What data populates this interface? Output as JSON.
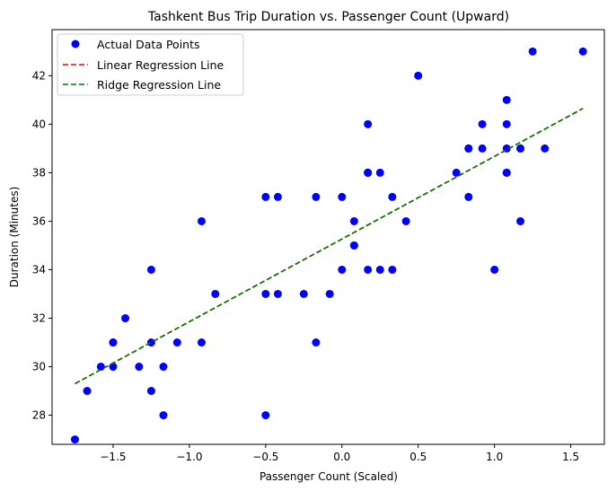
{
  "chart_data": {
    "type": "scatter",
    "title": "Tashkent Bus Trip Duration vs. Passenger Count (Upward)",
    "xlabel": "Passenger Count (Scaled)",
    "ylabel": "Duration (Minutes)",
    "xlim": [
      -1.9,
      1.72
    ],
    "ylim": [
      26.8,
      43.9
    ],
    "xticks": [
      -1.5,
      -1.0,
      -0.5,
      0.0,
      0.5,
      1.0,
      1.5
    ],
    "xtick_labels": [
      "−1.5",
      "−1.0",
      "−0.5",
      "0.0",
      "0.5",
      "1.0",
      "1.5"
    ],
    "yticks": [
      28,
      30,
      32,
      34,
      36,
      38,
      40,
      42
    ],
    "ytick_labels": [
      "28",
      "30",
      "32",
      "34",
      "36",
      "38",
      "40",
      "42"
    ],
    "grid": false,
    "legend_position": "top-left",
    "series": [
      {
        "name": "Actual Data Points",
        "kind": "scatter",
        "color": "#0000ff",
        "points": [
          [
            -1.75,
            27
          ],
          [
            -1.67,
            29
          ],
          [
            -1.58,
            30
          ],
          [
            -1.5,
            31
          ],
          [
            -1.5,
            31
          ],
          [
            -1.5,
            30
          ],
          [
            -1.42,
            32
          ],
          [
            -1.33,
            30
          ],
          [
            -1.25,
            34
          ],
          [
            -1.25,
            31
          ],
          [
            -1.25,
            29
          ],
          [
            -1.17,
            30
          ],
          [
            -1.17,
            28
          ],
          [
            -1.08,
            31
          ],
          [
            -0.92,
            36
          ],
          [
            -0.92,
            31
          ],
          [
            -0.83,
            33
          ],
          [
            -0.5,
            37
          ],
          [
            -0.5,
            33
          ],
          [
            -0.5,
            28
          ],
          [
            -0.42,
            37
          ],
          [
            -0.42,
            33
          ],
          [
            -0.25,
            33
          ],
          [
            -0.17,
            37
          ],
          [
            -0.17,
            31
          ],
          [
            -0.08,
            33
          ],
          [
            0.0,
            37
          ],
          [
            0.0,
            34
          ],
          [
            0.08,
            36
          ],
          [
            0.08,
            35
          ],
          [
            0.08,
            35
          ],
          [
            0.17,
            40
          ],
          [
            0.17,
            38
          ],
          [
            0.17,
            38
          ],
          [
            0.17,
            38
          ],
          [
            0.17,
            34
          ],
          [
            0.25,
            38
          ],
          [
            0.25,
            34
          ],
          [
            0.33,
            37
          ],
          [
            0.33,
            34
          ],
          [
            0.42,
            36
          ],
          [
            0.5,
            42
          ],
          [
            0.75,
            38
          ],
          [
            0.83,
            39
          ],
          [
            0.83,
            39
          ],
          [
            0.83,
            37
          ],
          [
            0.92,
            40
          ],
          [
            0.92,
            39
          ],
          [
            1.0,
            34
          ],
          [
            1.08,
            41
          ],
          [
            1.08,
            40
          ],
          [
            1.08,
            39
          ],
          [
            1.08,
            38
          ],
          [
            1.08,
            38
          ],
          [
            1.17,
            39
          ],
          [
            1.17,
            39
          ],
          [
            1.17,
            36
          ],
          [
            1.25,
            43
          ],
          [
            1.33,
            39
          ],
          [
            1.58,
            43
          ]
        ]
      },
      {
        "name": "Linear Regression Line",
        "kind": "line",
        "style": "dashed",
        "color": "#ff0000",
        "points": [
          [
            -1.75,
            29.3
          ],
          [
            1.58,
            40.65
          ]
        ]
      },
      {
        "name": "Ridge Regression Line",
        "kind": "line",
        "style": "dashed",
        "color": "#007a00",
        "points": [
          [
            -1.75,
            29.3
          ],
          [
            1.58,
            40.65
          ]
        ]
      }
    ]
  }
}
